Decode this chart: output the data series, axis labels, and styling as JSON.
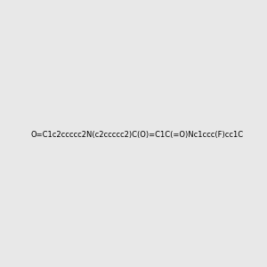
{
  "smiles": "O=C1c2ccccc2N(c2ccccc2)C(O)=C1C(=O)Nc1ccc(F)cc1C",
  "image_size": 300,
  "background_color": "#e8e8e8",
  "title": ""
}
